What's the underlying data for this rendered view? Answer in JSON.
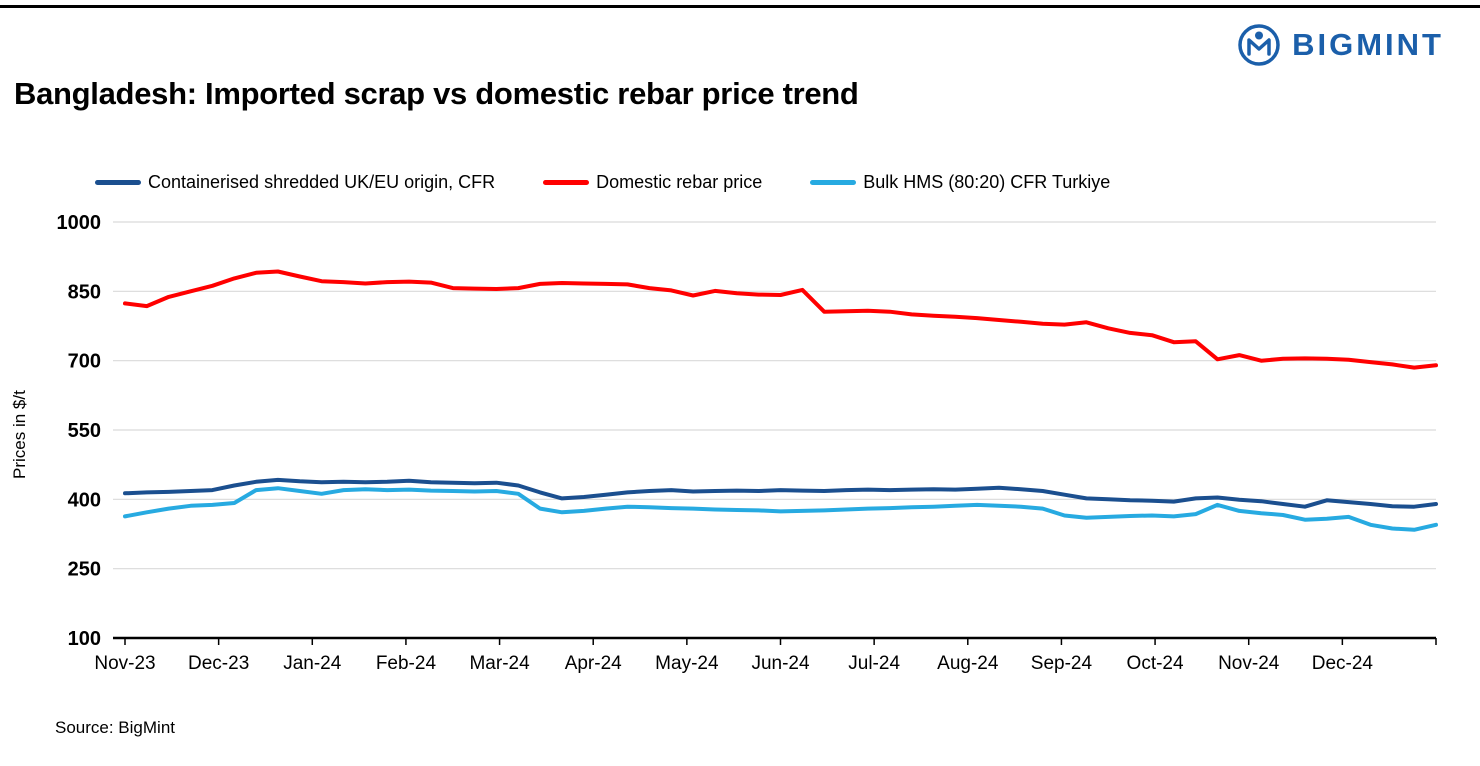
{
  "logo": {
    "brand": "BIGMINT",
    "color": "#1b5faa"
  },
  "header": {
    "title": "Bangladesh: Imported scrap vs domestic rebar price trend"
  },
  "footer": {
    "source": "Source: BigMint"
  },
  "chart_data": {
    "type": "line",
    "title": "Bangladesh: Imported scrap vs domestic rebar price trend",
    "ylabel": "Prices in $/t",
    "xlabel": "",
    "ylim": [
      100,
      1000
    ],
    "yticks": [
      100,
      250,
      400,
      550,
      700,
      850,
      1000
    ],
    "grid": "horizontal",
    "legend_position": "top",
    "categories": [
      "Nov-23",
      "Dec-23",
      "Jan-24",
      "Feb-24",
      "Mar-24",
      "Apr-24",
      "May-24",
      "Jun-24",
      "Jul-24",
      "Aug-24",
      "Sep-24",
      "Oct-24",
      "Nov-24",
      "Dec-24"
    ],
    "series": [
      {
        "name": "Containerised shredded UK/EU origin, CFR",
        "color": "#1b4f8f",
        "values": [
          413,
          415,
          416,
          418,
          420,
          430,
          438,
          442,
          439,
          437,
          438,
          437,
          438,
          440,
          437,
          436,
          435,
          436,
          430,
          415,
          402,
          405,
          410,
          415,
          418,
          420,
          417,
          418,
          419,
          418,
          420,
          419,
          418,
          420,
          421,
          420,
          421,
          422,
          421,
          423,
          425,
          422,
          418,
          410,
          402,
          400,
          398,
          397,
          395,
          402,
          404,
          399,
          396,
          390,
          384,
          398,
          394,
          390,
          385,
          384,
          390
        ]
      },
      {
        "name": "Domestic rebar price",
        "color": "#ff0000",
        "values": [
          824,
          818,
          838,
          850,
          862,
          878,
          890,
          893,
          882,
          872,
          870,
          867,
          870,
          871,
          869,
          857,
          856,
          855,
          857,
          866,
          868,
          867,
          866,
          865,
          857,
          852,
          841,
          851,
          846,
          843,
          842,
          853,
          806,
          807,
          808,
          806,
          800,
          797,
          795,
          792,
          788,
          784,
          780,
          778,
          783,
          770,
          760,
          755,
          740,
          742,
          703,
          712,
          700,
          704,
          705,
          704,
          702,
          697,
          692,
          685,
          690
        ]
      },
      {
        "name": "Bulk HMS (80:20) CFR Turkiye",
        "color": "#27aae1",
        "values": [
          363,
          372,
          380,
          386,
          388,
          392,
          420,
          424,
          418,
          412,
          420,
          422,
          420,
          421,
          419,
          418,
          417,
          418,
          412,
          380,
          372,
          375,
          380,
          384,
          383,
          381,
          380,
          378,
          377,
          376,
          374,
          375,
          376,
          378,
          380,
          381,
          383,
          384,
          386,
          388,
          386,
          384,
          380,
          365,
          360,
          362,
          364,
          365,
          363,
          368,
          388,
          375,
          370,
          366,
          356,
          358,
          362,
          345,
          337,
          334,
          345
        ]
      }
    ]
  }
}
